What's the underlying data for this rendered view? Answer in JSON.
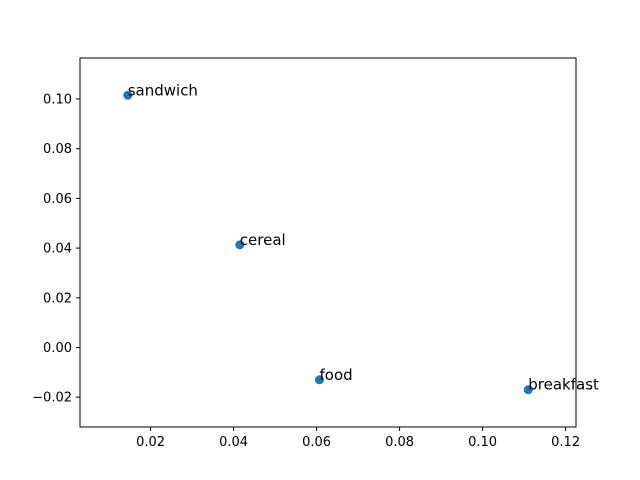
{
  "chart_data": {
    "type": "scatter",
    "title": "",
    "xlabel": "",
    "ylabel": "",
    "xlim": [
      0.003,
      0.1225
    ],
    "ylim": [
      -0.032,
      0.1165
    ],
    "xticks": [
      "0.02",
      "0.04",
      "0.06",
      "0.08",
      "0.10",
      "0.12"
    ],
    "yticks": [
      "−0.02",
      "0.00",
      "0.02",
      "0.04",
      "0.06",
      "0.08",
      "0.10"
    ],
    "grid": false,
    "marker_color": "#1f77b4",
    "points": [
      {
        "label": "sandwich",
        "x": 0.0145,
        "y": 0.1015
      },
      {
        "label": "cereal",
        "x": 0.0415,
        "y": 0.0413
      },
      {
        "label": "food",
        "x": 0.0607,
        "y": -0.013
      },
      {
        "label": "breakfast",
        "x": 0.111,
        "y": -0.017
      }
    ]
  }
}
